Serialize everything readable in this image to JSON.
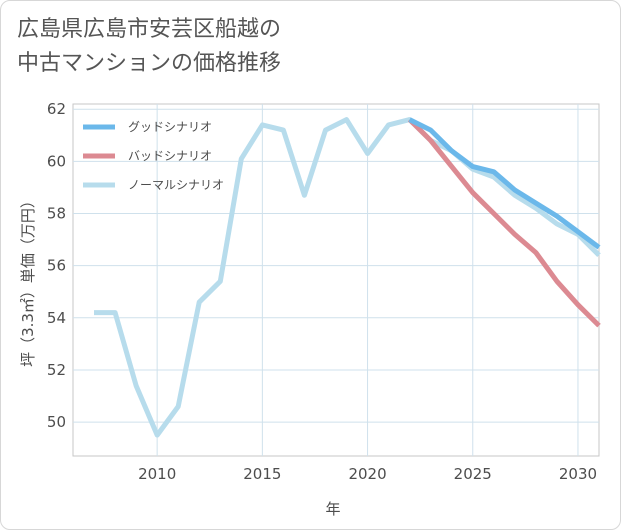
{
  "chart_data": {
    "type": "line",
    "title_lines": [
      "広島県広島市安芸区船越の",
      "中古マンションの価格推移"
    ],
    "xlabel": "年",
    "ylabel": "坪（3.3㎡）単価（万円）",
    "xlim": [
      2006,
      2031
    ],
    "ylim": [
      48.7,
      62.2
    ],
    "x_ticks": [
      2010,
      2015,
      2020,
      2025,
      2030
    ],
    "y_ticks": [
      50,
      52,
      54,
      56,
      58,
      60,
      62
    ],
    "grid": true,
    "legend_position": "top-left",
    "series": [
      {
        "name": "グッドシナリオ",
        "color": "#6bb8ea",
        "x": [
          2022,
          2023,
          2024,
          2025,
          2026,
          2027,
          2028,
          2029,
          2030,
          2031
        ],
        "values": [
          61.6,
          61.2,
          60.4,
          59.8,
          59.6,
          58.9,
          58.4,
          57.9,
          57.3,
          56.7
        ]
      },
      {
        "name": "バッドシナリオ",
        "color": "#dc8a92",
        "x": [
          2022,
          2023,
          2024,
          2025,
          2026,
          2027,
          2028,
          2029,
          2030,
          2031
        ],
        "values": [
          61.6,
          60.8,
          59.8,
          58.8,
          58.0,
          57.2,
          56.5,
          55.4,
          54.5,
          53.7
        ]
      },
      {
        "name": "ノーマルシナリオ",
        "color": "#b7dcec",
        "x": [
          2007,
          2008,
          2009,
          2010,
          2011,
          2012,
          2013,
          2014,
          2015,
          2016,
          2017,
          2018,
          2019,
          2020,
          2021,
          2022,
          2023,
          2024,
          2025,
          2026,
          2027,
          2028,
          2029,
          2030,
          2031
        ],
        "values": [
          54.2,
          54.2,
          51.4,
          49.5,
          50.6,
          54.6,
          55.4,
          60.1,
          61.4,
          61.2,
          58.7,
          61.2,
          61.6,
          60.3,
          61.4,
          61.6,
          60.8,
          60.4,
          59.7,
          59.4,
          58.7,
          58.2,
          57.6,
          57.2,
          56.4
        ]
      }
    ]
  }
}
